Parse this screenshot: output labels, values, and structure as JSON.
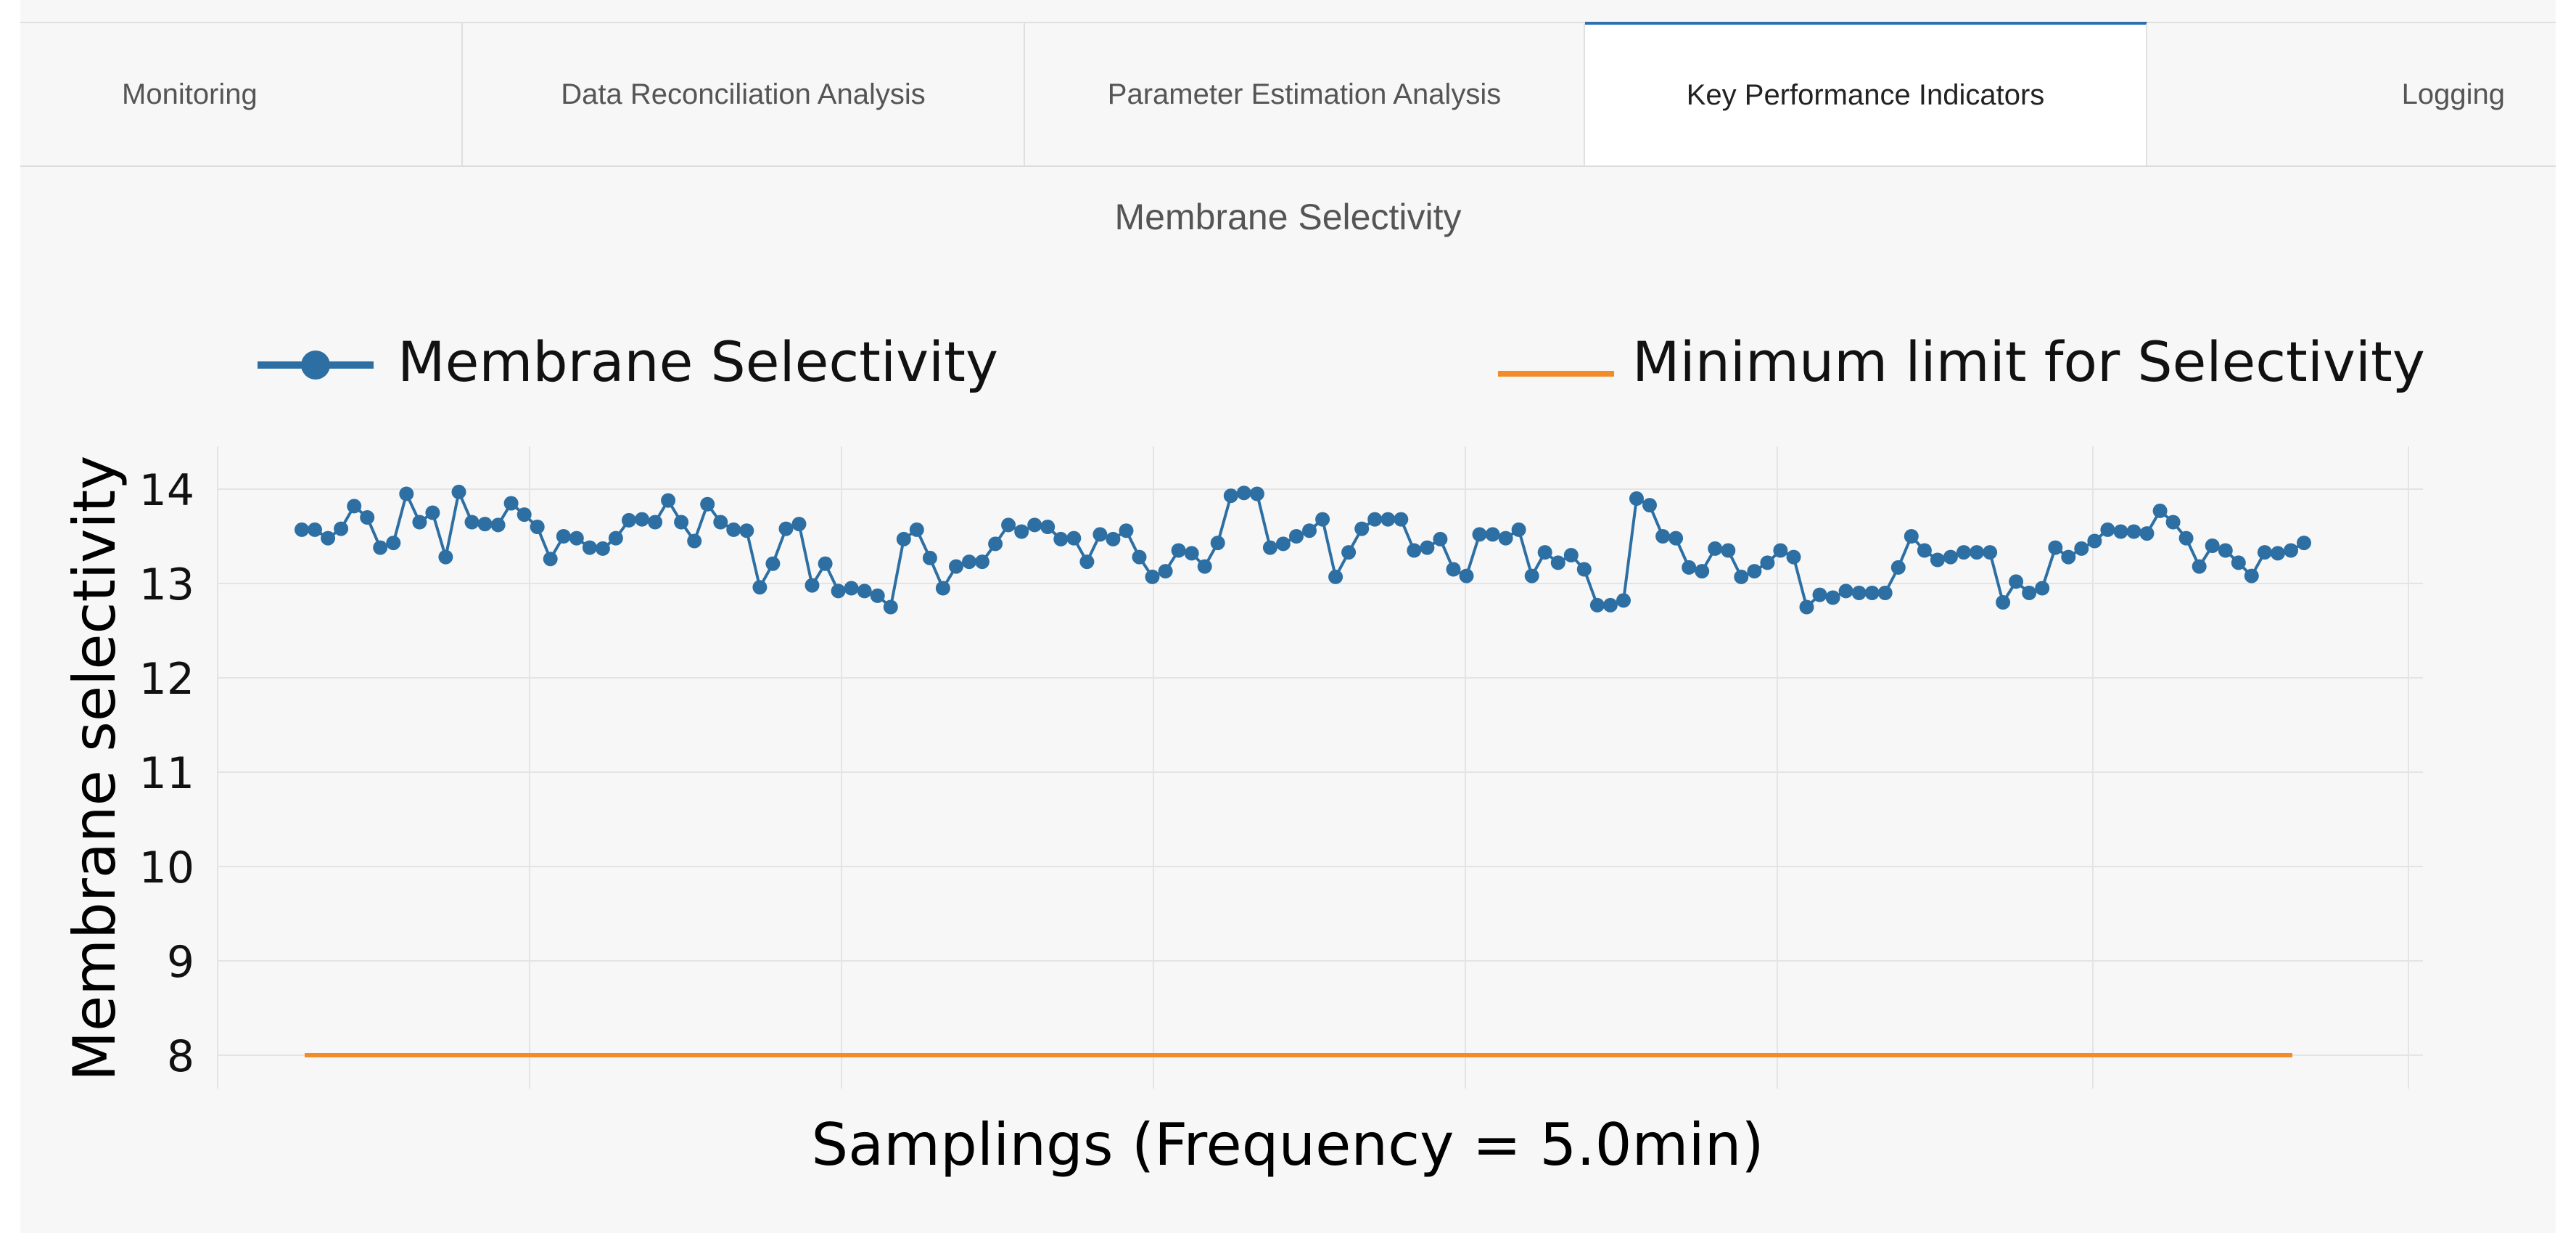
{
  "tabs": [
    {
      "label": "Monitoring",
      "active": false
    },
    {
      "label": "Data Reconciliation Analysis",
      "active": false
    },
    {
      "label": "Parameter Estimation Analysis",
      "active": false
    },
    {
      "label": "Key Performance Indicators",
      "active": true
    },
    {
      "label": "Logging",
      "active": false
    }
  ],
  "colors": {
    "series": "#2e6fa3",
    "limit": "#f28c28",
    "grid": "#e4e4e4"
  },
  "chart_data": {
    "type": "line",
    "title": "Membrane Selectivity",
    "xlabel": "Samplings (Frequency = 5.0min)",
    "ylabel": "Membrane selectivity",
    "ylim": [
      7.7,
      14.35
    ],
    "yticks": [
      8,
      9,
      10,
      11,
      12,
      13,
      14
    ],
    "legend": [
      "Membrane Selectivity",
      "Minimum limit for Selectivity"
    ],
    "legend_position": "top",
    "series": [
      {
        "name": "Membrane Selectivity",
        "values": [
          13.57,
          13.57,
          13.48,
          13.58,
          13.82,
          13.7,
          13.38,
          13.43,
          13.95,
          13.65,
          13.75,
          13.28,
          13.97,
          13.65,
          13.63,
          13.62,
          13.85,
          13.73,
          13.6,
          13.26,
          13.5,
          13.48,
          13.38,
          13.37,
          13.48,
          13.67,
          13.68,
          13.65,
          13.88,
          13.65,
          13.45,
          13.84,
          13.65,
          13.57,
          13.56,
          12.96,
          13.21,
          13.58,
          13.63,
          12.98,
          13.21,
          12.92,
          12.95,
          12.92,
          12.87,
          12.75,
          13.47,
          13.57,
          13.27,
          12.95,
          13.18,
          13.23,
          13.23,
          13.42,
          13.62,
          13.55,
          13.62,
          13.6,
          13.47,
          13.48,
          13.23,
          13.52,
          13.47,
          13.56,
          13.28,
          13.07,
          13.13,
          13.35,
          13.32,
          13.18,
          13.43,
          13.93,
          13.96,
          13.95,
          13.38,
          13.42,
          13.5,
          13.56,
          13.68,
          13.07,
          13.33,
          13.58,
          13.68,
          13.68,
          13.68,
          13.35,
          13.38,
          13.47,
          13.15,
          13.08,
          13.52,
          13.52,
          13.48,
          13.57,
          13.08,
          13.33,
          13.22,
          13.3,
          13.15,
          12.77,
          12.77,
          12.82,
          13.9,
          13.83,
          13.5,
          13.48,
          13.17,
          13.13,
          13.37,
          13.35,
          13.07,
          13.13,
          13.22,
          13.35,
          13.28,
          12.75,
          12.88,
          12.85,
          12.92,
          12.9,
          12.9,
          12.9,
          13.17,
          13.5,
          13.35,
          13.25,
          13.28,
          13.33,
          13.33,
          13.33,
          12.8,
          13.02,
          12.9,
          12.95,
          13.38,
          13.28,
          13.37,
          13.45,
          13.57,
          13.55,
          13.55,
          13.53,
          13.77,
          13.65,
          13.48,
          13.18,
          13.4,
          13.35,
          13.22,
          13.08,
          13.33,
          13.32,
          13.35,
          13.43
        ]
      },
      {
        "name": "Minimum limit for Selectivity",
        "values": [
          8,
          8
        ]
      }
    ]
  }
}
